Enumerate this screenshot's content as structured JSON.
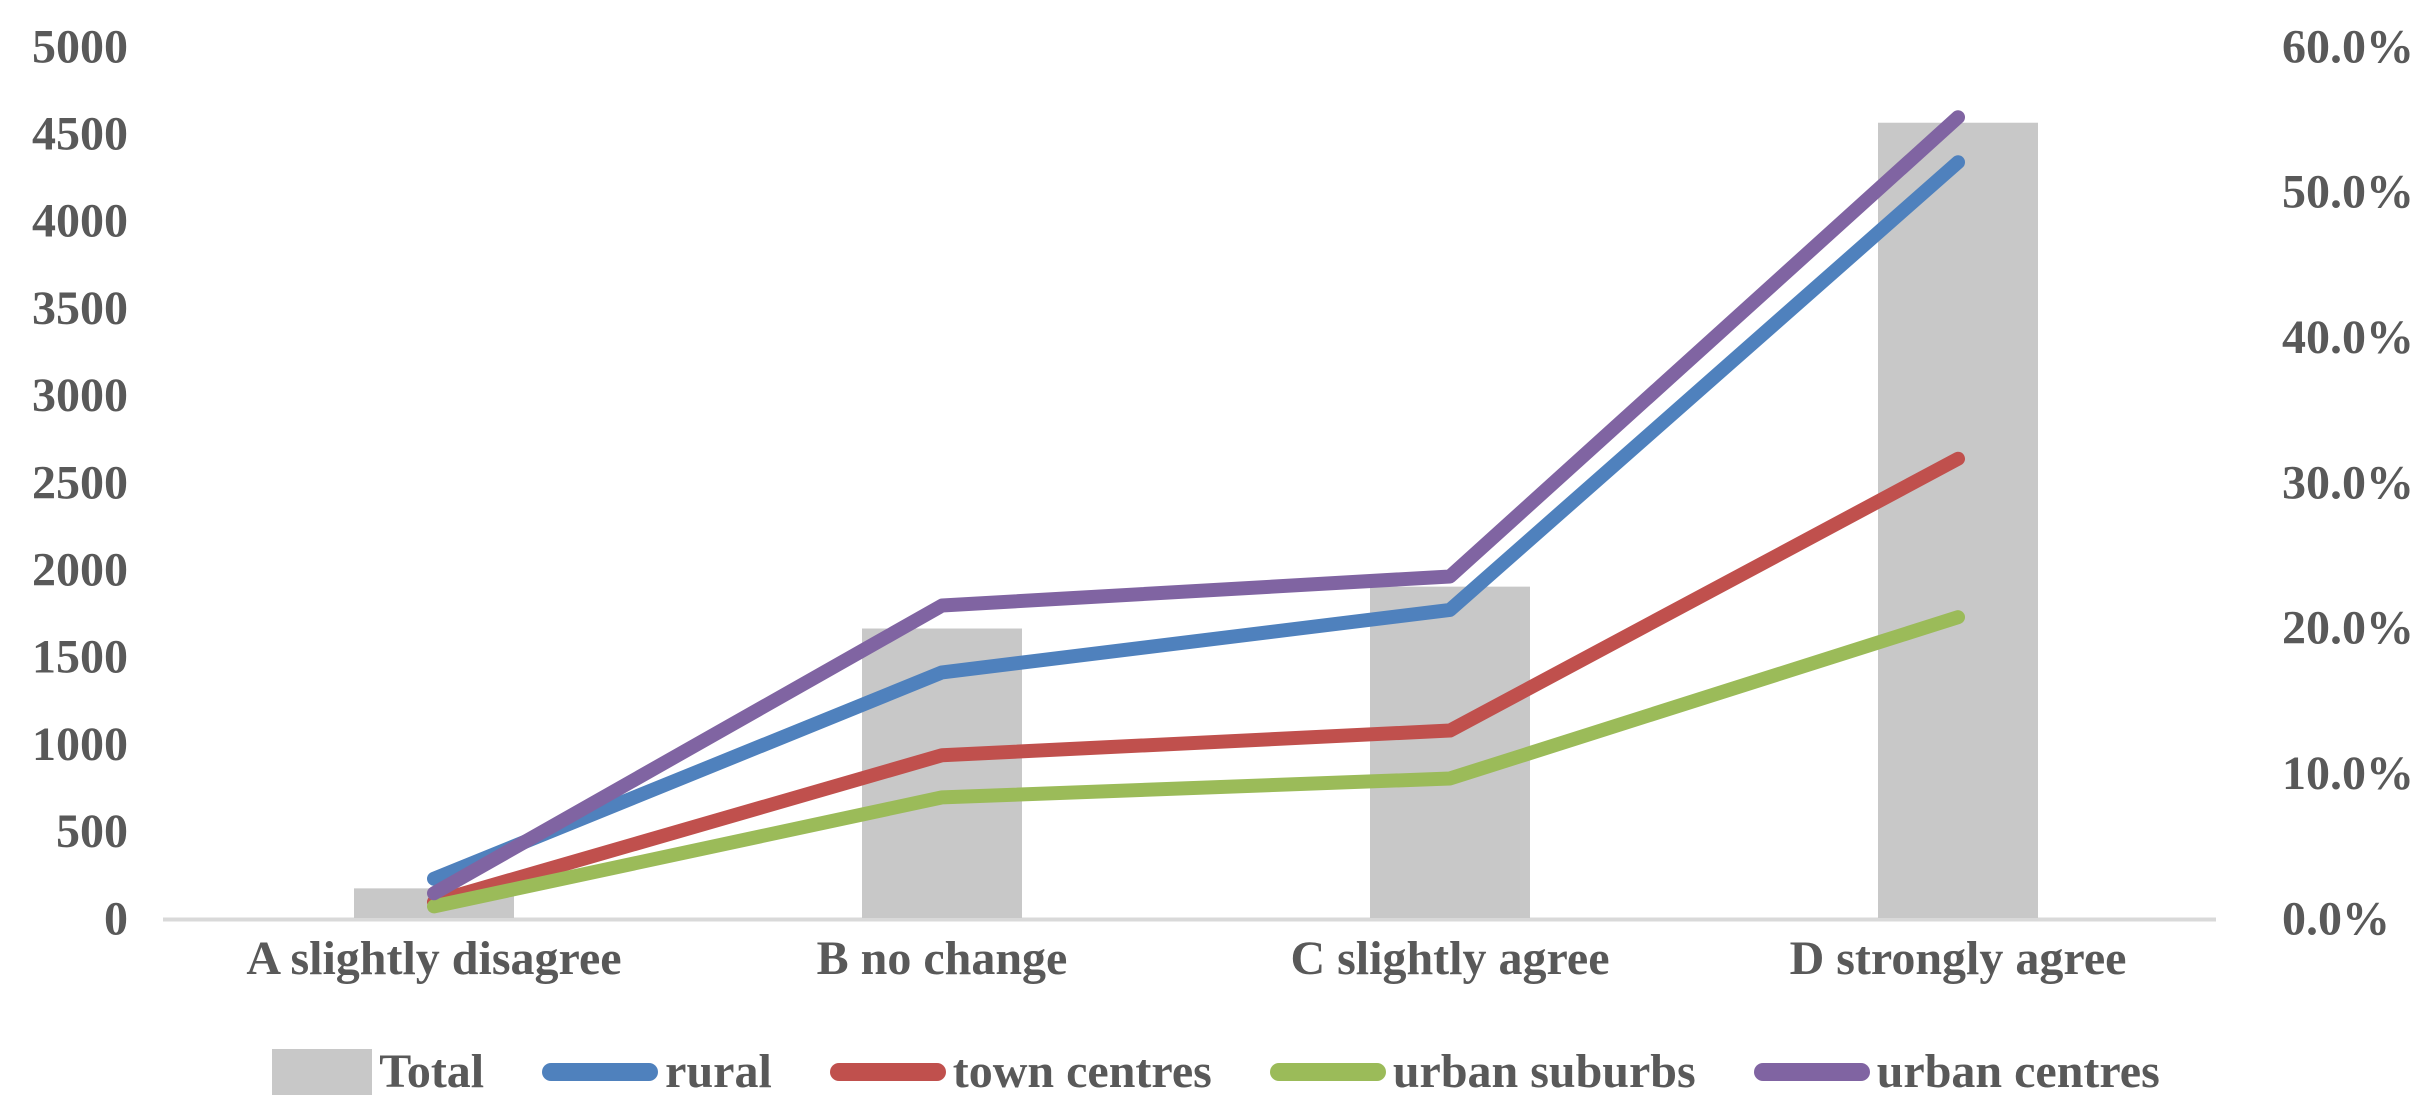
{
  "chart_data": {
    "type": "combo-bar-line",
    "title": "",
    "categories": [
      "A slightly disagree",
      "B no change",
      "C slightly agree",
      "D strongly agree"
    ],
    "bar_series": {
      "name": "Total",
      "axis": "left",
      "color": "#c8c8c8",
      "values": [
        170,
        1660,
        1900,
        4560
      ]
    },
    "line_series": [
      {
        "name": "rural",
        "axis": "right",
        "color": "#4f81bd",
        "values_pct": [
          2.7,
          16.9,
          21.2,
          52.0
        ]
      },
      {
        "name": "town centres",
        "axis": "right",
        "color": "#c0504d",
        "values_pct": [
          1.1,
          11.2,
          12.9,
          31.6
        ]
      },
      {
        "name": "urban suburbs",
        "axis": "right",
        "color": "#9bbb59",
        "values_pct": [
          0.8,
          8.3,
          9.6,
          20.7
        ]
      },
      {
        "name": "urban centres",
        "axis": "right",
        "color": "#8064a2",
        "values_pct": [
          1.7,
          21.5,
          23.5,
          55.1
        ]
      }
    ],
    "left_axis": {
      "min": 0,
      "max": 5000,
      "step": 500,
      "tick_labels": [
        "0",
        "500",
        "1000",
        "1500",
        "2000",
        "2500",
        "3000",
        "3500",
        "4000",
        "4500",
        "5000"
      ]
    },
    "right_axis": {
      "min": 0,
      "max": 60,
      "step": 10,
      "tick_labels": [
        "0.0%",
        "10.0%",
        "20.0%",
        "30.0%",
        "40.0%",
        "50.0%",
        "60.0%"
      ]
    },
    "grid": false,
    "legend": {
      "position": "bottom",
      "entries": [
        {
          "label": "Total",
          "marker": "rect",
          "color": "#c8c8c8"
        },
        {
          "label": "rural",
          "marker": "line",
          "color": "#4f81bd"
        },
        {
          "label": "town centres",
          "marker": "line",
          "color": "#c0504d"
        },
        {
          "label": "urban suburbs",
          "marker": "line",
          "color": "#9bbb59"
        },
        {
          "label": "urban centres",
          "marker": "line",
          "color": "#8064a2"
        }
      ]
    },
    "colors": {
      "tick_label_text": "#595959",
      "category_label_text": "#595959",
      "legend_text": "#595959",
      "axis_line": "#d9d9d9",
      "background": "#ffffff"
    }
  }
}
